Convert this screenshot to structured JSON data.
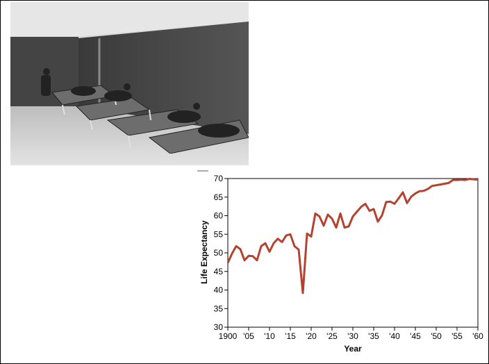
{
  "photo": {
    "alt": ""
  },
  "chart_data": {
    "type": "line",
    "title": "",
    "xlabel": "Year",
    "ylabel": "Life Expectancy",
    "xlim": [
      1900,
      1960
    ],
    "ylim": [
      30,
      70
    ],
    "x_ticks": [
      1900,
      1905,
      1910,
      1915,
      1920,
      1925,
      1930,
      1935,
      1940,
      1945,
      1950,
      1955,
      1960
    ],
    "x_tick_labels": [
      "1900",
      "'05",
      "'10",
      "'15",
      "'20",
      "'25",
      "'30",
      "'35",
      "'40",
      "'45",
      "'50",
      "'55",
      "'60"
    ],
    "y_ticks": [
      30,
      35,
      40,
      45,
      50,
      55,
      60,
      65,
      70
    ],
    "y_tick_labels": [
      "30",
      "35",
      "40",
      "45",
      "50",
      "55",
      "60",
      "65",
      "70"
    ],
    "grid": false,
    "line_color": "#b5422f",
    "series": [
      {
        "x": [
          1900,
          1901,
          1902,
          1903,
          1904,
          1905,
          1906,
          1907,
          1908,
          1909,
          1910,
          1911,
          1912,
          1913,
          1914,
          1915,
          1916,
          1917,
          1918,
          1919,
          1920,
          1921,
          1922,
          1923,
          1924,
          1925,
          1926,
          1927,
          1928,
          1929,
          1930,
          1931,
          1932,
          1933,
          1934,
          1935,
          1936,
          1937,
          1938,
          1939,
          1940,
          1941,
          1942,
          1943,
          1944,
          1945,
          1946,
          1947,
          1948,
          1949,
          1950,
          1951,
          1952,
          1953,
          1954,
          1955,
          1956,
          1957,
          1958,
          1959,
          1960
        ],
        "y": [
          47.3,
          49.8,
          51.8,
          51.0,
          48.0,
          49.2,
          49.1,
          48.0,
          51.8,
          52.6,
          50.3,
          52.6,
          53.8,
          52.9,
          54.7,
          55.0,
          51.8,
          50.9,
          39.2,
          55.2,
          54.4,
          60.6,
          59.8,
          57.3,
          60.3,
          59.2,
          56.8,
          60.6,
          56.8,
          57.1,
          59.8,
          61.1,
          62.4,
          63.2,
          61.3,
          61.8,
          58.4,
          60.1,
          63.7,
          63.8,
          63.2,
          64.7,
          66.3,
          63.4,
          65.1,
          66.0,
          66.6,
          66.7,
          67.2,
          68.0,
          68.2,
          68.4,
          68.6,
          68.8,
          69.6,
          69.6,
          69.7,
          69.6,
          69.9,
          69.8,
          69.7
        ]
      }
    ]
  }
}
